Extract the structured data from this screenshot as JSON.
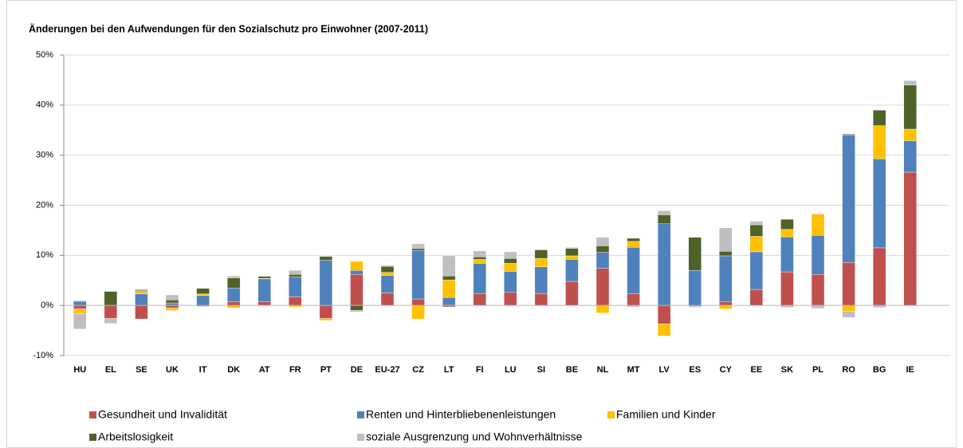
{
  "chart_data": {
    "type": "bar",
    "stacked": true,
    "title": "Änderungen bei den Aufwendungen für den Sozialschutz pro Einwohner (2007-2011)",
    "categories": [
      "HU",
      "EL",
      "SE",
      "UK",
      "IT",
      "DK",
      "AT",
      "FR",
      "PT",
      "DE",
      "EU-27",
      "CZ",
      "LT",
      "FI",
      "LU",
      "SI",
      "BE",
      "NL",
      "MT",
      "LV",
      "ES",
      "CY",
      "EE",
      "SK",
      "PL",
      "RO",
      "BG",
      "IE"
    ],
    "series": [
      {
        "name": "Gesundheit und Invalidität",
        "color": "#c0504d",
        "values": [
          -0.7,
          -2.6,
          -2.7,
          -0.5,
          -0.2,
          0.7,
          0.7,
          1.7,
          -2.6,
          6.2,
          2.5,
          1.3,
          -0.3,
          2.4,
          2.6,
          2.4,
          4.8,
          7.4,
          2.3,
          -3.7,
          -0.2,
          0.7,
          3.2,
          6.7,
          6.2,
          8.6,
          11.5,
          26.6
        ]
      },
      {
        "name": "Renten und Hinterbliebenenleistungen",
        "color": "#4f81bd",
        "values": [
          0.7,
          0,
          2.3,
          0.5,
          2.0,
          2.8,
          4.6,
          4.0,
          9.0,
          0.8,
          3.5,
          9.7,
          1.6,
          6.0,
          4.2,
          5.3,
          4.4,
          3.2,
          9.3,
          16.3,
          7.0,
          9.2,
          7.5,
          7.0,
          7.8,
          25.4,
          17.8,
          6.3
        ]
      },
      {
        "name": "Familien und Kinder",
        "color": "#ffc000",
        "values": [
          -1.0,
          0,
          0.5,
          -0.5,
          0.3,
          -0.5,
          0.1,
          -0.3,
          -0.4,
          1.8,
          0.6,
          -2.7,
          3.5,
          0.8,
          1.6,
          1.7,
          0.7,
          -1.5,
          1.2,
          -2.4,
          0,
          -0.7,
          3.1,
          1.5,
          4.2,
          -1.2,
          6.6,
          2.3
        ]
      },
      {
        "name": "Arbeitslosigkeit",
        "color": "#4f6228",
        "values": [
          0.2,
          2.8,
          0.2,
          0.6,
          1.1,
          2.0,
          0.4,
          0.5,
          0.8,
          -1.0,
          1.2,
          0.4,
          0.8,
          0.5,
          1.0,
          1.7,
          1.5,
          1.3,
          0.6,
          1.8,
          6.6,
          0.9,
          2.3,
          2.0,
          0.1,
          0.2,
          3.1,
          8.8
        ]
      },
      {
        "name": "soziale Ausgrenzung und Wohnverhältnisse",
        "color": "#bfbfbf",
        "values": [
          -3.0,
          -1.0,
          0.3,
          1.0,
          0.1,
          0.4,
          0.1,
          0.8,
          0.1,
          -0.3,
          0.2,
          0.9,
          4.0,
          1.2,
          1.3,
          0.1,
          0.2,
          1.7,
          -0.3,
          0.8,
          -0.2,
          4.7,
          0.7,
          -0.4,
          -0.6,
          -1.2,
          -0.4,
          0.9
        ]
      }
    ],
    "ylim": [
      -10,
      50
    ],
    "yticks": [
      {
        "value": -10,
        "label": "-10%"
      },
      {
        "value": 0,
        "label": "0%"
      },
      {
        "value": 10,
        "label": "10%"
      },
      {
        "value": 20,
        "label": "20%"
      },
      {
        "value": 30,
        "label": "30%"
      },
      {
        "value": 40,
        "label": "40%"
      },
      {
        "value": 50,
        "label": "50%"
      }
    ],
    "grid": true,
    "legend": "bottom"
  }
}
